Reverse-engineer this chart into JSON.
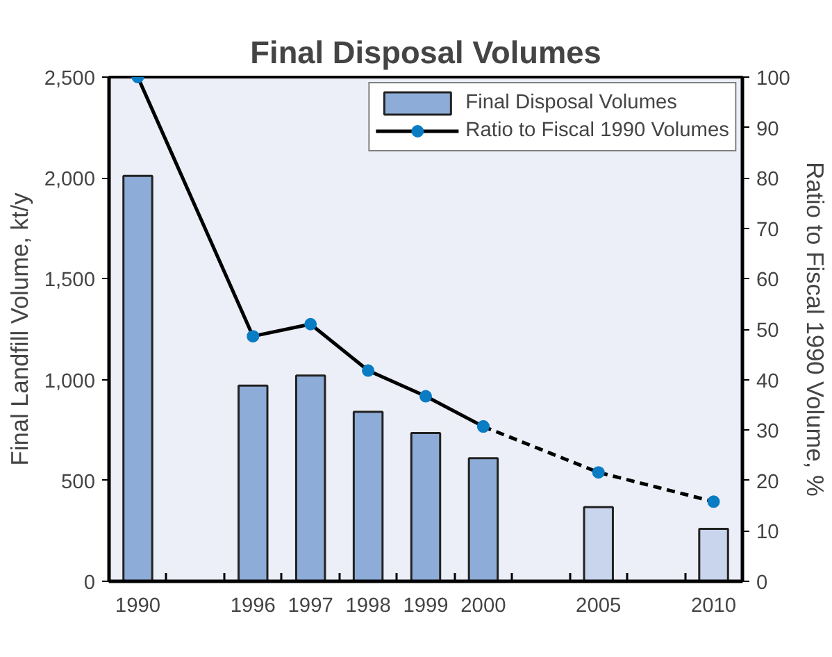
{
  "chart_data": {
    "type": "bar",
    "title": "Final Disposal Volumes",
    "categories": [
      "1990",
      null,
      "1996",
      "1997",
      "1998",
      "1999",
      "2000",
      null,
      "2005",
      null,
      "2010"
    ],
    "series": [
      {
        "name": "Final Disposal Volumes",
        "color": "#8eacd8",
        "colors": [
          "#8eacd8",
          "#8eacd8",
          "#8eacd8",
          "#8eacd8",
          "#8eacd8",
          "#8eacd8",
          "#8eacd8",
          "#8eacd8",
          "#c9d5ec",
          "#c9d5ec",
          "#c9d5ec"
        ],
        "values": [
          2010,
          null,
          970,
          1020,
          840,
          735,
          610,
          null,
          368,
          null,
          260
        ]
      },
      {
        "name": "Ratio to Fiscal 1990 Volumes",
        "type": "line",
        "axis": "y2",
        "color": "#000000",
        "marker": "circle",
        "line_style": "solid",
        "colors": [
          "#0a7cc4",
          "#0a7cc4",
          "#0a7cc4",
          "#0a7cc4",
          "#0a7cc4",
          "#0a7cc4",
          "#0a7cc4",
          "#0a7cc4",
          "#0a7cc4",
          "#0a7cc4",
          "#0a7cc4"
        ],
        "values": [
          100,
          null,
          48.6,
          51,
          41.8,
          36.7,
          30.7,
          null,
          null,
          null,
          null
        ]
      },
      {
        "type": "line",
        "axis": "y2",
        "color": "#000000",
        "marker": "circle",
        "line_style": "dashed",
        "colors": [
          "#0a7cc4",
          "#0a7cc4",
          "#0a7cc4",
          "#0a7cc4",
          "#0a7cc4",
          "#0a7cc4",
          "#0a7cc4",
          "#0a7cc4",
          "#0a7cc4",
          "#0a7cc4",
          "#0a7cc4"
        ],
        "values": [
          null,
          null,
          null,
          null,
          null,
          null,
          30.7,
          null,
          21.6,
          null,
          15.8
        ]
      }
    ],
    "ylabel": "Final Landfill Volume, kt/y",
    "y2label": "Ratio to Fiscal 1990 Volume, %",
    "ylim": [
      0,
      2500
    ],
    "yticks": [
      0,
      {
        "value": 500,
        "label": "500"
      },
      {
        "value": 1000,
        "label": "1,000"
      },
      {
        "value": 1500,
        "label": "1,500"
      },
      {
        "value": 2000,
        "label": "2,000"
      },
      {
        "value": 2500,
        "label": "2,500"
      }
    ],
    "y2lim": [
      0,
      100
    ],
    "y2ticks": [
      0,
      10,
      20,
      30,
      40,
      50,
      60,
      70,
      80,
      90,
      100
    ],
    "grid": false,
    "legend": "top right"
  }
}
